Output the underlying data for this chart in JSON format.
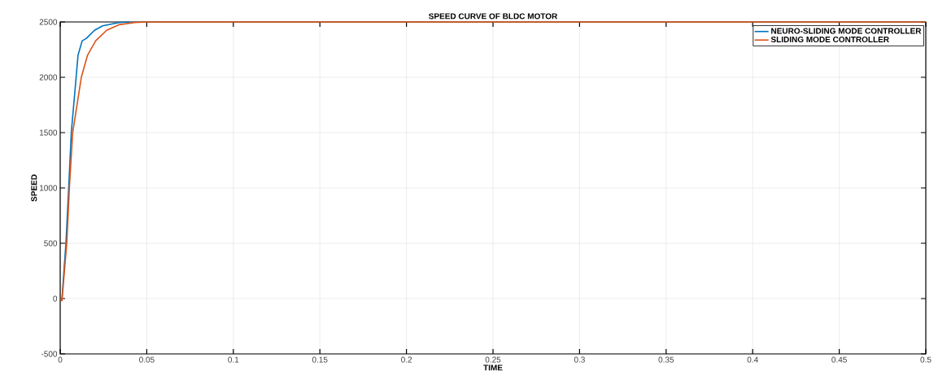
{
  "chart_data": {
    "type": "line",
    "title": "SPEED CURVE OF BLDC MOTOR",
    "xlabel": "TIME",
    "ylabel": "SPEED",
    "xlim": [
      0,
      0.5
    ],
    "ylim": [
      -500,
      2500
    ],
    "xticks": [
      0,
      0.05,
      0.1,
      0.15,
      0.2,
      0.25,
      0.3,
      0.35,
      0.4,
      0.45,
      0.5
    ],
    "yticks": [
      -500,
      0,
      500,
      1000,
      1500,
      2000,
      2500
    ],
    "grid": true,
    "legend": "top right",
    "series": [
      {
        "name": "NEURO-SLIDING MODE CONTROLLER",
        "color": "#0072bd",
        "x": [
          0,
          0.001,
          0.0033,
          0.0049,
          0.0064,
          0.0092,
          0.0103,
          0.0127,
          0.015,
          0.0198,
          0.0245,
          0.034,
          0.04
        ],
        "values": [
          0,
          -10,
          500,
          1000,
          1500,
          2000,
          2200,
          2330,
          2350,
          2425,
          2465,
          2495,
          2500
        ]
      },
      {
        "name": "SLIDING MODE CONTROLLER",
        "color": "#d95319",
        "x": [
          0,
          0.001,
          0.0038,
          0.0053,
          0.0072,
          0.0122,
          0.0158,
          0.0205,
          0.0268,
          0.0339,
          0.043,
          0.05,
          0.1,
          0.5
        ],
        "values": [
          0,
          -20,
          500,
          1000,
          1500,
          2000,
          2200,
          2330,
          2425,
          2475,
          2495,
          2500,
          2500,
          2500
        ]
      }
    ]
  }
}
